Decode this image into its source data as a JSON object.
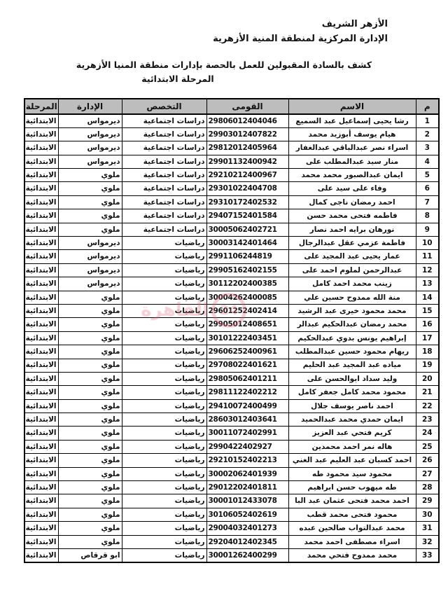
{
  "header": {
    "org_line1": "الأزهر الشريف",
    "org_line2": "الإدارة المركزية لمنطقة المنية الأزهرية",
    "title": "كشف بالسادة المقبولين للعمل بالحصة بإدارات منطقة المنيا الأزهرية",
    "subtitle": "المرحلة الابتدائية"
  },
  "watermark": {
    "number": "24",
    "text": "القاهرة",
    "color": "#d4687c"
  },
  "table": {
    "header_bg": "#bdbdbd",
    "headers": {
      "index": "م",
      "name": "الاسم",
      "national_id": "القومى",
      "specialization": "التخصص",
      "administration": "الإدارة",
      "stage": "المرحلة"
    },
    "rows": [
      {
        "index": "1",
        "name": "رشا يحيى إسماعيل عبد السميع",
        "national_id": "29806012404046",
        "specialization": "دراسات اجتماعية",
        "administration": "ديرمواس",
        "stage": "الابتدائية"
      },
      {
        "index": "2",
        "name": "هيام يوسف أبوزيد محمد",
        "national_id": "29903012407822",
        "specialization": "دراسات اجتماعية",
        "administration": "ديرمواس",
        "stage": "الابتدائية"
      },
      {
        "index": "3",
        "name": "اسراء نصر عبدالباقي عبدالغفار",
        "national_id": "29812012405964",
        "specialization": "دراسات اجتماعية",
        "administration": "ديرمواس",
        "stage": "الابتدائية"
      },
      {
        "index": "4",
        "name": "منار سيد عبدالمطلب على",
        "national_id": "29901132400942",
        "specialization": "دراسات اجتماعية",
        "administration": "ديرمواس",
        "stage": "الابتدائية"
      },
      {
        "index": "5",
        "name": "ايمان عبدالصبور محمد محمد",
        "national_id": "29210212400967",
        "specialization": "دراسات اجتماعية",
        "administration": "ملوي",
        "stage": "الابتدائية"
      },
      {
        "index": "6",
        "name": "وفاء على سيد على",
        "national_id": "29301022404708",
        "specialization": "دراسات اجتماعية",
        "administration": "ملوي",
        "stage": "الابتدائية"
      },
      {
        "index": "7",
        "name": "احمد رمضان ناجى كمال",
        "national_id": "29310172402532",
        "specialization": "دراسات اجتماعية",
        "administration": "ملوي",
        "stage": "الابتدائية"
      },
      {
        "index": "8",
        "name": "فاطمه فتحى محمد حسن",
        "national_id": "29407152401584",
        "specialization": "دراسات اجتماعية",
        "administration": "ملوي",
        "stage": "الابتدائية"
      },
      {
        "index": "9",
        "name": "نورهان برايه احمد نصار",
        "national_id": "30005062402721",
        "specialization": "دراسات اجتماعية",
        "administration": "ملوي",
        "stage": "الابتدائية"
      },
      {
        "index": "10",
        "name": "فاطمة عزمي عقل عبدالرجال",
        "national_id": "30003142401464",
        "specialization": "رياضيات",
        "administration": "ديرمواس",
        "stage": "الابتدائية"
      },
      {
        "index": "11",
        "name": "عمار يحيى عبد المجيد على",
        "national_id": "2991106244819",
        "specialization": "رياضيات",
        "administration": "ديرمواس",
        "stage": "الابتدائية"
      },
      {
        "index": "12",
        "name": "عبدالرحمن لملوم احمد على",
        "national_id": "29905162402155",
        "specialization": "رياضيات",
        "administration": "ديرمواس",
        "stage": "الابتدائية"
      },
      {
        "index": "13",
        "name": "زينب محمد احمد كامل",
        "national_id": "30112202400385",
        "specialization": "رياضيات",
        "administration": "ديرمواس",
        "stage": "الابتدائية"
      },
      {
        "index": "14",
        "name": "منة الله ممدوح حسين علي",
        "national_id": "30004262400085",
        "specialization": "رياضيات",
        "administration": "ملوي",
        "stage": "الابتدائية"
      },
      {
        "index": "15",
        "name": "محمد محمود خيرى عبد الرشيد",
        "national_id": "29601252402414",
        "specialization": "رياضيات",
        "administration": "ملوي",
        "stage": "الابتدائية"
      },
      {
        "index": "16",
        "name": "محمد رمضان عبدالحكيم عبدالر",
        "national_id": "29905012408651",
        "specialization": "رياضيات",
        "administration": "ملوي",
        "stage": "الابتدائية"
      },
      {
        "index": "17",
        "name": "إبراهيم يونس بدوي عبدالحكيم",
        "national_id": "30101222403451",
        "specialization": "رياضيات",
        "administration": "ملوي",
        "stage": "الابتدائية"
      },
      {
        "index": "18",
        "name": "ريهام محمود حسين عبدالمطلب",
        "national_id": "29606252400961",
        "specialization": "رياضيات",
        "administration": "ملوي",
        "stage": "الابتدائية"
      },
      {
        "index": "19",
        "name": "مياده عبد المجيد عبد الحليم",
        "national_id": "29708022401621",
        "specialization": "رياضيات",
        "administration": "ملوي",
        "stage": "الابتدائية"
      },
      {
        "index": "20",
        "name": "وليد سداد ابوالحسن على",
        "national_id": "29805062401211",
        "specialization": "رياضيات",
        "administration": "ملوي",
        "stage": "الابتدائية"
      },
      {
        "index": "21",
        "name": "محمود محمد كامل جعفر كامل",
        "national_id": "29811122402212",
        "specialization": "رياضيات",
        "administration": "ملوي",
        "stage": "الابتدائية"
      },
      {
        "index": "22",
        "name": "احمد ناصر يوسف جلال",
        "national_id": "29410072400499",
        "specialization": "رياضيات",
        "administration": "ملوي",
        "stage": "الابتدائية"
      },
      {
        "index": "23",
        "name": "ايمان حمدي محمد عبدالحميد",
        "national_id": "28603012403641",
        "specialization": "رياضيات",
        "administration": "ملوي",
        "stage": "الابتدائية"
      },
      {
        "index": "24",
        "name": "كريم فتحي عبد العزيز",
        "national_id": "30011072402991",
        "specialization": "رياضيات",
        "administration": "ملوي",
        "stage": "الابتدائية"
      },
      {
        "index": "25",
        "name": "هاله نمر احمد محمدين",
        "national_id": "2990422402927",
        "specialization": "رياضيات",
        "administration": "ملوي",
        "stage": "الابتدائية"
      },
      {
        "index": "26",
        "name": "احمد كسبان عبد العليم عبد الغني",
        "national_id": "29210152402213",
        "specialization": "رياضيات",
        "administration": "ملوي",
        "stage": "الابتدائية"
      },
      {
        "index": "27",
        "name": "محمود سيد  محمود طه",
        "national_id": "30002062401939",
        "specialization": "رياضيات",
        "administration": "ملوي",
        "stage": "الابتدائية"
      },
      {
        "index": "28",
        "name": "طه ميهوب حسن ابراهيم",
        "national_id": "29012202401811",
        "specialization": "رياضيات",
        "administration": "ملوي",
        "stage": "الابتدائية"
      },
      {
        "index": "29",
        "name": "احمد محمد فتحى عثمان عبد البا",
        "national_id": "30001012433078",
        "specialization": "رياضيات",
        "administration": "ملوي",
        "stage": "الابتدائية"
      },
      {
        "index": "30",
        "name": "محمود فتحى محمد قطب",
        "national_id": "30106052402619",
        "specialization": "رياضيات",
        "administration": "ملوي",
        "stage": "الابتدائية"
      },
      {
        "index": "31",
        "name": "محمد عبدالتواب صالحين عبده",
        "national_id": "29004032401273",
        "specialization": "رياضيات",
        "administration": "ملوي",
        "stage": "الابتدائية"
      },
      {
        "index": "32",
        "name": "اسراء مصطفى احمد محمد",
        "national_id": "29204012402345",
        "specialization": "رياضيات",
        "administration": "ملوي",
        "stage": "الابتدائية"
      },
      {
        "index": "33",
        "name": "محمد ممدوح فتحي محمد",
        "national_id": "30001262400299",
        "specialization": "رياضيات",
        "administration": "ابو قرقاص",
        "stage": "الابتدائية"
      }
    ]
  }
}
